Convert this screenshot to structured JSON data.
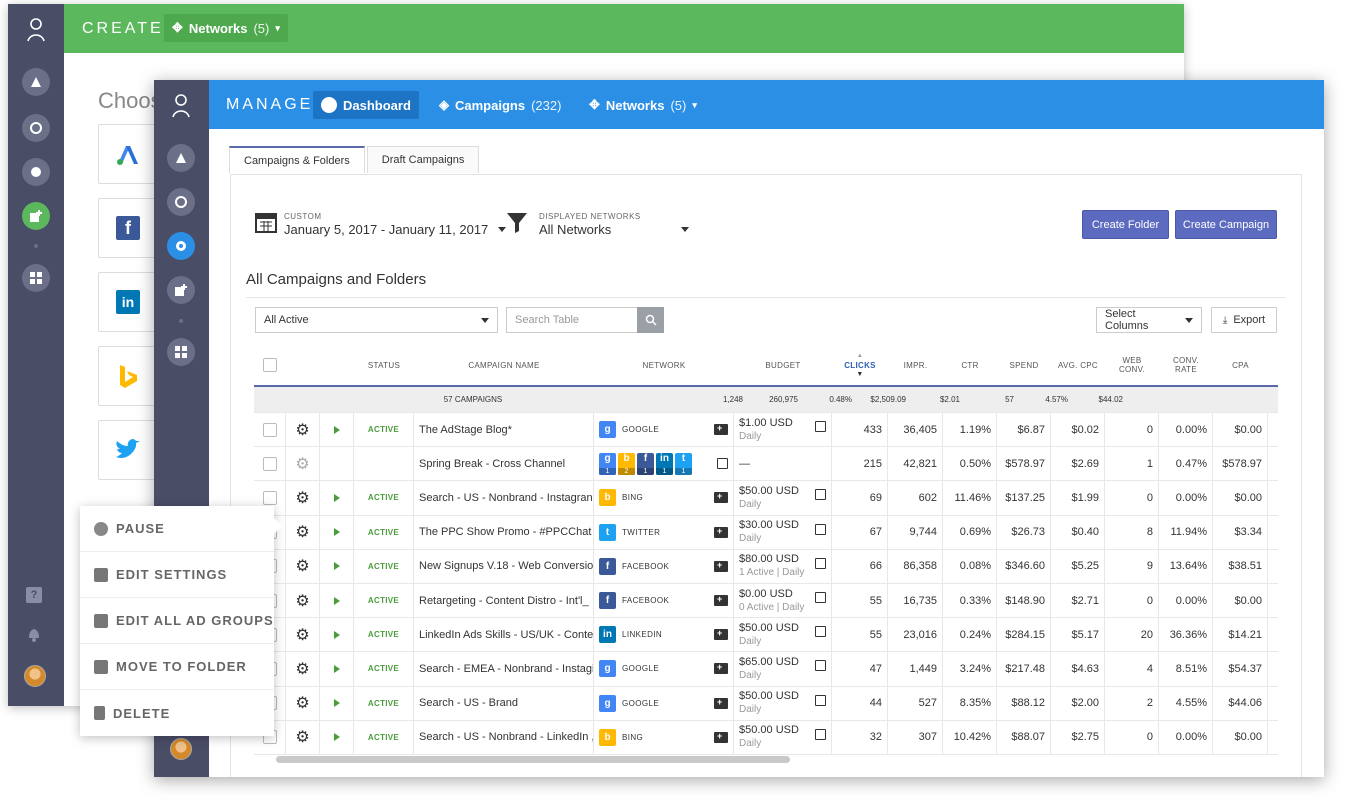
{
  "create_window": {
    "title": "CREATE",
    "networks_label": "Networks",
    "networks_count": "(5)",
    "choose_heading": "Choos"
  },
  "manage_window": {
    "title": "MANAGE",
    "nav": {
      "dashboard": "Dashboard",
      "campaigns": "Campaigns",
      "campaigns_count": "(232)",
      "networks": "Networks",
      "networks_count": "(5)"
    },
    "tabs": [
      "Campaigns & Folders",
      "Draft Campaigns"
    ],
    "date_filter": {
      "label": "CUSTOM",
      "value": "January 5, 2017 - January 11, 2017"
    },
    "network_filter": {
      "label": "DISPLAYED NETWORKS",
      "value": "All Networks"
    },
    "buttons": {
      "create_folder": "Create Folder",
      "create_campaign": "Create Campaign",
      "select_columns": "Select Columns",
      "export": "Export"
    },
    "section_title": "All Campaigns and Folders",
    "status_select": "All Active",
    "search_placeholder": "Search Table"
  },
  "table": {
    "headers": {
      "status": "STATUS",
      "name": "CAMPAIGN NAME",
      "network": "NETWORK",
      "budget": "BUDGET",
      "clicks": "CLICKS",
      "impr": "IMPR.",
      "ctr": "CTR",
      "spend": "SPEND",
      "avg_cpc": "AVG. CPC",
      "web_conv": "WEB CONV.",
      "conv_rate": "CONV. RATE",
      "cpa": "CPA"
    },
    "summary": {
      "label": "57 CAMPAIGNS",
      "clicks": "1,248",
      "impr": "260,975",
      "ctr": "0.48%",
      "spend": "$2,509.09",
      "avg_cpc": "$2.01",
      "web_conv": "57",
      "conv_rate": "4.57%",
      "cpa": "$44.02"
    },
    "rows": [
      {
        "status": "ACTIVE",
        "name": "The AdStage Blog*",
        "network": "GOOGLE",
        "budget": "$1.00 USD",
        "budget_sub": "Daily",
        "clicks": "433",
        "impr": "36,405",
        "ctr": "1.19%",
        "spend": "$6.87",
        "avg_cpc": "$0.02",
        "web_conv": "0",
        "conv_rate": "0.00%",
        "cpa": "$0.00"
      },
      {
        "status": "",
        "name": "Spring Break - Cross Channel",
        "network": "",
        "budget": "—",
        "budget_sub": "",
        "clicks": "215",
        "impr": "42,821",
        "ctr": "0.50%",
        "spend": "$578.97",
        "avg_cpc": "$2.69",
        "web_conv": "1",
        "conv_rate": "0.47%",
        "cpa": "$578.97"
      },
      {
        "status": "ACTIVE",
        "name": "Search - US - Nonbrand - Instagran",
        "network": "BING",
        "budget": "$50.00 USD",
        "budget_sub": "Daily",
        "clicks": "69",
        "impr": "602",
        "ctr": "11.46%",
        "spend": "$137.25",
        "avg_cpc": "$1.99",
        "web_conv": "0",
        "conv_rate": "0.00%",
        "cpa": "$0.00"
      },
      {
        "status": "ACTIVE",
        "name": "The PPC Show Promo - #PPCChat I",
        "network": "TWITTER",
        "budget": "$30.00 USD",
        "budget_sub": "Daily",
        "clicks": "67",
        "impr": "9,744",
        "ctr": "0.69%",
        "spend": "$26.73",
        "avg_cpc": "$0.40",
        "web_conv": "8",
        "conv_rate": "11.94%",
        "cpa": "$3.34"
      },
      {
        "status": "ACTIVE",
        "name": "New Signups V.18 - Web Conversio",
        "network": "FACEBOOK",
        "budget": "$80.00 USD",
        "budget_sub": "1 Active | Daily",
        "clicks": "66",
        "impr": "86,358",
        "ctr": "0.08%",
        "spend": "$346.60",
        "avg_cpc": "$5.25",
        "web_conv": "9",
        "conv_rate": "13.64%",
        "cpa": "$38.51"
      },
      {
        "status": "ACTIVE",
        "name": "Retargeting - Content Distro - Int'l_",
        "network": "FACEBOOK",
        "budget": "$0.00 USD",
        "budget_sub": "0 Active | Daily",
        "clicks": "55",
        "impr": "16,735",
        "ctr": "0.33%",
        "spend": "$148.90",
        "avg_cpc": "$2.71",
        "web_conv": "0",
        "conv_rate": "0.00%",
        "cpa": "$0.00"
      },
      {
        "status": "ACTIVE",
        "name": "LinkedIn Ads Skills - US/UK - Conte",
        "network": "LINKEDIN",
        "budget": "$50.00 USD",
        "budget_sub": "Daily",
        "clicks": "55",
        "impr": "23,016",
        "ctr": "0.24%",
        "spend": "$284.15",
        "avg_cpc": "$5.17",
        "web_conv": "20",
        "conv_rate": "36.36%",
        "cpa": "$14.21"
      },
      {
        "status": "ACTIVE",
        "name": "Search - EMEA - Nonbrand - Instagi",
        "network": "GOOGLE",
        "budget": "$65.00 USD",
        "budget_sub": "Daily",
        "clicks": "47",
        "impr": "1,449",
        "ctr": "3.24%",
        "spend": "$217.48",
        "avg_cpc": "$4.63",
        "web_conv": "4",
        "conv_rate": "8.51%",
        "cpa": "$54.37"
      },
      {
        "status": "ACTIVE",
        "name": "Search - US - Brand",
        "network": "GOOGLE",
        "budget": "$50.00 USD",
        "budget_sub": "Daily",
        "clicks": "44",
        "impr": "527",
        "ctr": "8.35%",
        "spend": "$88.12",
        "avg_cpc": "$2.00",
        "web_conv": "2",
        "conv_rate": "4.55%",
        "cpa": "$44.06"
      },
      {
        "status": "ACTIVE",
        "name": "Search - US - Nonbrand - LinkedIn ,",
        "network": "BING",
        "budget": "$50.00 USD",
        "budget_sub": "Daily",
        "clicks": "32",
        "impr": "307",
        "ctr": "10.42%",
        "spend": "$88.07",
        "avg_cpc": "$2.75",
        "web_conv": "0",
        "conv_rate": "0.00%",
        "cpa": "$0.00"
      }
    ],
    "cross_channel_counts": [
      "1",
      "2",
      "1",
      "1",
      "1"
    ]
  },
  "context_menu": [
    "PAUSE",
    "EDIT SETTINGS",
    "EDIT ALL AD GROUPS",
    "MOVE TO FOLDER",
    "DELETE"
  ],
  "colors": {
    "create_bar": "#5cb85c",
    "manage_bar": "#2b8fe6",
    "sidebar": "#4a4d66",
    "primary_button": "#5c6bc0",
    "active_status": "#4a9d3a"
  }
}
